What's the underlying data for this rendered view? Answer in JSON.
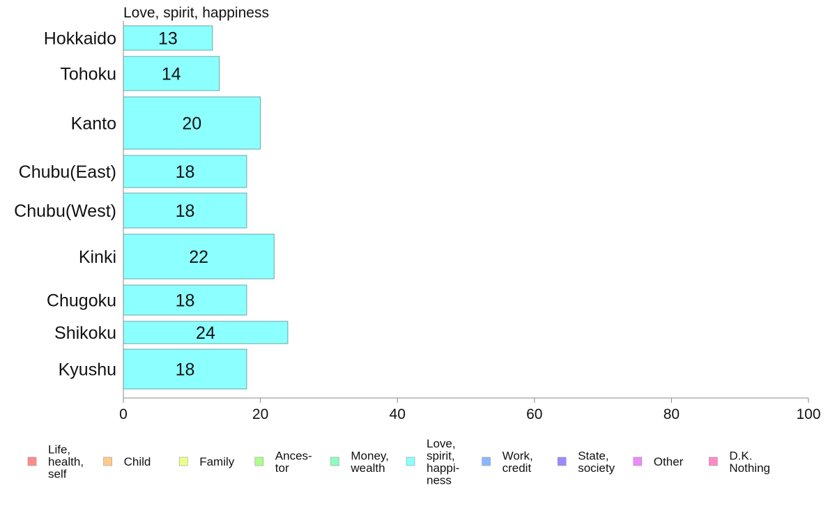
{
  "chart_data": {
    "type": "bar",
    "orientation": "horizontal",
    "title": "Love, spirit, happiness",
    "categories": [
      "Hokkaido",
      "Tohoku",
      "Kanto",
      "Chubu(East)",
      "Chubu(West)",
      "Kinki",
      "Chugoku",
      "Shikoku",
      "Kyushu"
    ],
    "values": [
      13,
      14,
      20,
      18,
      18,
      22,
      18,
      24,
      18
    ],
    "bar_color": "#8cffff",
    "bar_stroke": "#6aa7a7",
    "xlim": [
      0,
      100
    ],
    "xticks": [
      0,
      20,
      40,
      60,
      80,
      100
    ],
    "xlabel": "",
    "ylabel": "",
    "grid": false,
    "legend_position": "bottom",
    "legend": [
      {
        "lines": [
          "Life,",
          "health,",
          "self"
        ],
        "color": "#ff8a8a"
      },
      {
        "lines": [
          "Child"
        ],
        "color": "#ffca8a"
      },
      {
        "lines": [
          "Family"
        ],
        "color": "#eeff8a"
      },
      {
        "lines": [
          "Ances-",
          "tor"
        ],
        "color": "#adff8a"
      },
      {
        "lines": [
          "Money,",
          "wealth"
        ],
        "color": "#8affc0"
      },
      {
        "lines": [
          "Love,",
          "spirit,",
          "happi-",
          "ness"
        ],
        "color": "#8affff"
      },
      {
        "lines": [
          "Work,",
          "credit"
        ],
        "color": "#8ab8ff"
      },
      {
        "lines": [
          "State,",
          "society"
        ],
        "color": "#9b8aff"
      },
      {
        "lines": [
          "Other"
        ],
        "color": "#ee8aff"
      },
      {
        "lines": [
          "D.K.",
          "Nothing"
        ],
        "color": "#ff8ac9"
      }
    ]
  }
}
